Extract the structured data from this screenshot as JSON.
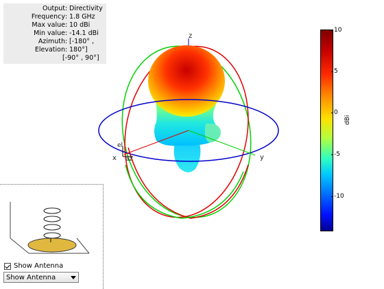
{
  "info": [
    {
      "label": "Output",
      "value": "Directivity"
    },
    {
      "label": "Frequency",
      "value": "1.8 GHz"
    },
    {
      "label": "Max value",
      "value": "10 dBi"
    },
    {
      "label": "Min value",
      "value": "-14.1 dBi"
    },
    {
      "label": "Azimuth",
      "value": "[-180° ,"
    },
    {
      "label": "Elevation",
      "value": "180°]"
    },
    {
      "label": "",
      "value": "[-90° , 90°]"
    }
  ],
  "axes": {
    "x": "x",
    "y": "y",
    "z": "z",
    "el": "el",
    "az": "az"
  },
  "colorbar": {
    "ticks": [
      "10",
      "5",
      "0",
      "-5",
      "-10"
    ],
    "tick_values": [
      10,
      5,
      0,
      -5,
      -10
    ],
    "min": -14.1,
    "max": 10,
    "unit": "dBi"
  },
  "colors": {
    "x_circle": "#e00000",
    "y_circle": "#00d000",
    "z_circle": "#0000c8",
    "antenna_ground": "#e0b840"
  },
  "controls": {
    "show_antenna_label": "Show Antenna",
    "show_antenna_checked": true,
    "dropdown_value": "Show Antenna"
  }
}
